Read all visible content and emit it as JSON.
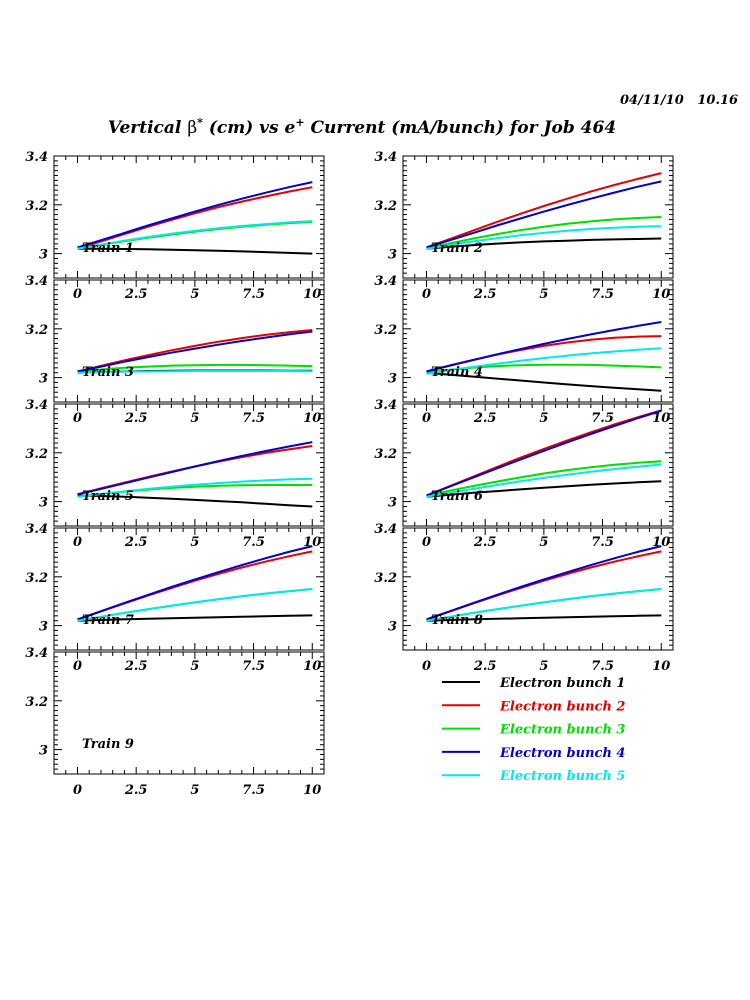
{
  "stamp": {
    "date": "04/11/10",
    "time": "10.16"
  },
  "chart_data": {
    "type": "line",
    "title": {
      "pre": "Vertical ",
      "beta": "β",
      "beta_sup": "*",
      "mid": " (cm) vs e",
      "e_sup": "+",
      "post": " Current (mA/bunch) for Job 464"
    },
    "xlabel": "",
    "ylabel": "",
    "xlim": [
      -1,
      10.5
    ],
    "ylim": [
      2.9,
      3.4
    ],
    "x_ticks": [
      0,
      2.5,
      5,
      7.5,
      10
    ],
    "x_tick_labels": [
      "0",
      "2.5",
      "5",
      "7.5",
      "10"
    ],
    "y_ticks": [
      3,
      3.2,
      3.4
    ],
    "y_tick_labels": [
      "3",
      "3.2",
      "3.4"
    ],
    "x": [
      0,
      1,
      2,
      3,
      4,
      5,
      6,
      7,
      8,
      9,
      10
    ],
    "series_styles": [
      {
        "name": "Electron bunch 1",
        "color": "#000000"
      },
      {
        "name": "Electron bunch 2",
        "color": "#e00000"
      },
      {
        "name": "Electron bunch 3",
        "color": "#00dd00"
      },
      {
        "name": "Electron bunch 4",
        "color": "#0000c8"
      },
      {
        "name": "Electron bunch 5",
        "color": "#00e8e8"
      }
    ],
    "panels": [
      {
        "label": "Train 1",
        "series": [
          {
            "name": "Electron bunch 1",
            "values": [
              3.02,
              3.02,
              3.019,
              3.018,
              3.016,
              3.014,
              3.012,
              3.009,
              3.006,
              3.003,
              3.0
            ]
          },
          {
            "name": "Electron bunch 2",
            "values": [
              3.02,
              3.05,
              3.08,
              3.11,
              3.138,
              3.165,
              3.19,
              3.213,
              3.234,
              3.254,
              3.272
            ]
          },
          {
            "name": "Electron bunch 3",
            "values": [
              3.02,
              3.036,
              3.051,
              3.065,
              3.078,
              3.09,
              3.101,
              3.11,
              3.118,
              3.125,
              3.13
            ]
          },
          {
            "name": "Electron bunch 4",
            "values": [
              3.025,
              3.055,
              3.085,
              3.115,
              3.144,
              3.172,
              3.199,
              3.225,
              3.249,
              3.272,
              3.293
            ]
          },
          {
            "name": "Electron bunch 5",
            "values": [
              3.02,
              3.037,
              3.053,
              3.068,
              3.081,
              3.093,
              3.104,
              3.113,
              3.121,
              3.128,
              3.133
            ]
          }
        ]
      },
      {
        "label": "Train 2",
        "series": [
          {
            "name": "Electron bunch 1",
            "values": [
              3.02,
              3.028,
              3.035,
              3.041,
              3.046,
              3.05,
              3.053,
              3.056,
              3.058,
              3.06,
              3.062
            ]
          },
          {
            "name": "Electron bunch 2",
            "values": [
              3.025,
              3.06,
              3.095,
              3.13,
              3.163,
              3.195,
              3.225,
              3.254,
              3.281,
              3.306,
              3.33
            ]
          },
          {
            "name": "Electron bunch 3",
            "values": [
              3.02,
              3.042,
              3.062,
              3.08,
              3.096,
              3.11,
              3.122,
              3.132,
              3.14,
              3.146,
              3.15
            ]
          },
          {
            "name": "Electron bunch 4",
            "values": [
              3.025,
              3.055,
              3.085,
              3.115,
              3.144,
              3.172,
              3.199,
              3.225,
              3.25,
              3.274,
              3.296
            ]
          },
          {
            "name": "Electron bunch 5",
            "values": [
              3.02,
              3.035,
              3.05,
              3.063,
              3.075,
              3.085,
              3.094,
              3.101,
              3.106,
              3.11,
              3.112
            ]
          }
        ]
      },
      {
        "label": "Train 3",
        "series": [
          {
            "name": "Electron bunch 1",
            "values": [
              3.02,
              3.023,
              3.025,
              3.027,
              3.028,
              3.029,
              3.029,
              3.029,
              3.029,
              3.028,
              3.028
            ]
          },
          {
            "name": "Electron bunch 2",
            "values": [
              3.025,
              3.048,
              3.071,
              3.092,
              3.112,
              3.13,
              3.147,
              3.162,
              3.175,
              3.186,
              3.195
            ]
          },
          {
            "name": "Electron bunch 3",
            "values": [
              3.025,
              3.033,
              3.04,
              3.045,
              3.049,
              3.051,
              3.052,
              3.052,
              3.051,
              3.049,
              3.047
            ]
          },
          {
            "name": "Electron bunch 4",
            "values": [
              3.025,
              3.045,
              3.065,
              3.084,
              3.102,
              3.119,
              3.135,
              3.15,
              3.164,
              3.177,
              3.189
            ]
          },
          {
            "name": "Electron bunch 5",
            "values": [
              3.02,
              3.022,
              3.024,
              3.025,
              3.026,
              3.027,
              3.027,
              3.027,
              3.027,
              3.027,
              3.026
            ]
          }
        ]
      },
      {
        "label": "Train 4",
        "series": [
          {
            "name": "Electron bunch 1",
            "values": [
              3.02,
              3.012,
              3.004,
              2.996,
              2.988,
              2.98,
              2.972,
              2.965,
              2.958,
              2.952,
              2.946
            ]
          },
          {
            "name": "Electron bunch 2",
            "values": [
              3.025,
              3.05,
              3.073,
              3.094,
              3.113,
              3.13,
              3.144,
              3.155,
              3.163,
              3.168,
              3.17
            ]
          },
          {
            "name": "Electron bunch 3",
            "values": [
              3.02,
              3.032,
              3.041,
              3.047,
              3.051,
              3.053,
              3.053,
              3.052,
              3.049,
              3.046,
              3.042
            ]
          },
          {
            "name": "Electron bunch 4",
            "values": [
              3.025,
              3.049,
              3.072,
              3.095,
              3.117,
              3.138,
              3.158,
              3.177,
              3.195,
              3.212,
              3.228
            ]
          },
          {
            "name": "Electron bunch 5",
            "values": [
              3.015,
              3.03,
              3.044,
              3.057,
              3.069,
              3.08,
              3.09,
              3.099,
              3.107,
              3.114,
              3.12
            ]
          }
        ]
      },
      {
        "label": "Train 5",
        "series": [
          {
            "name": "Electron bunch 1",
            "values": [
              3.025,
              3.023,
              3.02,
              3.016,
              3.012,
              3.007,
              3.002,
              2.997,
              2.991,
              2.985,
              2.98
            ]
          },
          {
            "name": "Electron bunch 2",
            "values": [
              3.03,
              3.054,
              3.078,
              3.101,
              3.123,
              3.144,
              3.164,
              3.182,
              3.199,
              3.214,
              3.228
            ]
          },
          {
            "name": "Electron bunch 3",
            "values": [
              3.02,
              3.031,
              3.041,
              3.049,
              3.056,
              3.061,
              3.065,
              3.067,
              3.068,
              3.068,
              3.068
            ]
          },
          {
            "name": "Electron bunch 4",
            "values": [
              3.03,
              3.052,
              3.075,
              3.098,
              3.121,
              3.144,
              3.166,
              3.187,
              3.207,
              3.226,
              3.244
            ]
          },
          {
            "name": "Electron bunch 5",
            "values": [
              3.02,
              3.031,
              3.042,
              3.052,
              3.061,
              3.069,
              3.076,
              3.082,
              3.087,
              3.091,
              3.094
            ]
          }
        ]
      },
      {
        "label": "Train 6",
        "series": [
          {
            "name": "Electron bunch 1",
            "values": [
              3.02,
              3.028,
              3.036,
              3.043,
              3.05,
              3.057,
              3.063,
              3.069,
              3.074,
              3.079,
              3.083
            ]
          },
          {
            "name": "Electron bunch 2",
            "values": [
              3.025,
              3.064,
              3.103,
              3.142,
              3.18,
              3.216,
              3.251,
              3.284,
              3.316,
              3.346,
              3.374
            ]
          },
          {
            "name": "Electron bunch 3",
            "values": [
              3.025,
              3.045,
              3.064,
              3.082,
              3.099,
              3.115,
              3.129,
              3.141,
              3.151,
              3.159,
              3.165
            ]
          },
          {
            "name": "Electron bunch 4",
            "values": [
              3.025,
              3.062,
              3.099,
              3.136,
              3.172,
              3.208,
              3.243,
              3.277,
              3.31,
              3.342,
              3.372
            ]
          },
          {
            "name": "Electron bunch 5",
            "values": [
              3.02,
              3.036,
              3.052,
              3.068,
              3.083,
              3.097,
              3.11,
              3.122,
              3.133,
              3.143,
              3.152
            ]
          }
        ]
      },
      {
        "label": "Train 7",
        "series": [
          {
            "name": "Electron bunch 1",
            "values": [
              3.02,
              3.023,
              3.026,
              3.028,
              3.03,
              3.032,
              3.034,
              3.036,
              3.038,
              3.04,
              3.042
            ]
          },
          {
            "name": "Electron bunch 2",
            "values": [
              3.025,
              3.058,
              3.091,
              3.123,
              3.154,
              3.184,
              3.212,
              3.238,
              3.262,
              3.284,
              3.304
            ]
          },
          {
            "name": "Electron bunch 3",
            "values": [
              3.02,
              3.036,
              3.052,
              3.067,
              3.081,
              3.095,
              3.108,
              3.12,
              3.131,
              3.141,
              3.15
            ]
          },
          {
            "name": "Electron bunch 4",
            "values": [
              3.025,
              3.059,
              3.093,
              3.126,
              3.158,
              3.189,
              3.219,
              3.248,
              3.276,
              3.302,
              3.326
            ]
          },
          {
            "name": "Electron bunch 5",
            "values": [
              3.02,
              3.036,
              3.052,
              3.067,
              3.081,
              3.095,
              3.108,
              3.12,
              3.131,
              3.141,
              3.15
            ]
          }
        ]
      },
      {
        "label": "Train 8",
        "series": [
          {
            "name": "Electron bunch 1",
            "values": [
              3.02,
              3.023,
              3.026,
              3.028,
              3.03,
              3.032,
              3.034,
              3.036,
              3.038,
              3.04,
              3.042
            ]
          },
          {
            "name": "Electron bunch 2",
            "values": [
              3.025,
              3.058,
              3.091,
              3.123,
              3.154,
              3.184,
              3.212,
              3.238,
              3.262,
              3.284,
              3.304
            ]
          },
          {
            "name": "Electron bunch 3",
            "values": [
              3.02,
              3.036,
              3.052,
              3.067,
              3.081,
              3.095,
              3.108,
              3.12,
              3.131,
              3.141,
              3.15
            ]
          },
          {
            "name": "Electron bunch 4",
            "values": [
              3.025,
              3.059,
              3.093,
              3.126,
              3.158,
              3.189,
              3.219,
              3.248,
              3.276,
              3.302,
              3.326
            ]
          },
          {
            "name": "Electron bunch 5",
            "values": [
              3.02,
              3.036,
              3.052,
              3.067,
              3.081,
              3.095,
              3.108,
              3.12,
              3.131,
              3.141,
              3.15
            ]
          }
        ]
      },
      {
        "label": "Train 9",
        "series": []
      }
    ],
    "legend": {
      "location": "bottom-right",
      "entries": [
        "Electron bunch 1",
        "Electron bunch 2",
        "Electron bunch 3",
        "Electron bunch 4",
        "Electron bunch 5"
      ]
    }
  }
}
